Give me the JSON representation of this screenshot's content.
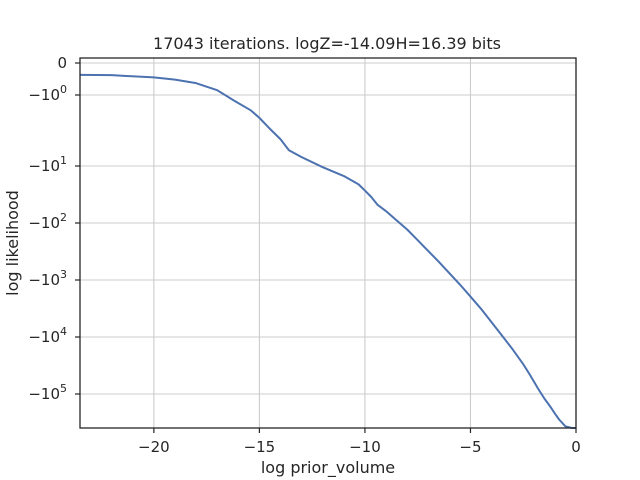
{
  "chart_data": {
    "type": "line",
    "title": "17043 iterations. logZ=-14.09H=16.39 bits",
    "xlabel": "log prior_volume",
    "ylabel": "log likelihood",
    "xlim": [
      -23.5,
      0
    ],
    "x_ticks": [
      {
        "value": -20,
        "label": "−20"
      },
      {
        "value": -15,
        "label": "−15"
      },
      {
        "value": -10,
        "label": "−10"
      },
      {
        "value": -5,
        "label": "−5"
      },
      {
        "value": 0,
        "label": "0"
      }
    ],
    "y_scale": "symlog",
    "y_ticks": [
      {
        "value": 0,
        "base": "0",
        "exp": ""
      },
      {
        "value": -1,
        "base": "−10",
        "exp": "0"
      },
      {
        "value": -10,
        "base": "−10",
        "exp": "1"
      },
      {
        "value": -100,
        "base": "−10",
        "exp": "2"
      },
      {
        "value": -1000,
        "base": "−10",
        "exp": "3"
      },
      {
        "value": -10000,
        "base": "−10",
        "exp": "4"
      },
      {
        "value": -100000,
        "base": "−10",
        "exp": "5"
      }
    ],
    "grid": true,
    "series": [
      {
        "color": "#4c72b0",
        "x": [
          -23.5,
          -22,
          -21.5,
          -20,
          -19,
          -18,
          -17,
          -16.2,
          -15.4,
          -15.0,
          -14.5,
          -14.0,
          -13.6,
          -13.0,
          -12.0,
          -11.0,
          -10.3,
          -10.0,
          -9.7,
          -9.4,
          -9.0,
          -8.5,
          -8.0,
          -7.5,
          -7.0,
          -6.5,
          -6.0,
          -5.5,
          -5.0,
          -4.5,
          -4.0,
          -3.5,
          -3.0,
          -2.5,
          -2.2,
          -2.0,
          -1.8,
          -1.5,
          -1.2,
          -1.0,
          -0.8,
          -0.5,
          -0.2,
          -0.05,
          0
        ],
        "y": [
          -0.37,
          -0.38,
          -0.4,
          -0.45,
          -0.52,
          -0.63,
          -0.85,
          -1.2,
          -1.65,
          -2.1,
          -3.0,
          -4.2,
          -6.0,
          -7.5,
          -10.5,
          -15.0,
          -21,
          -27,
          -35,
          -48,
          -62,
          -90,
          -130,
          -200,
          -310,
          -480,
          -760,
          -1200,
          -1950,
          -3200,
          -5500,
          -9500,
          -16500,
          -30000,
          -45000,
          -60000,
          -80000,
          -120000,
          -170000,
          -220000,
          -280000,
          -370000,
          -480000,
          -650000,
          -900000
        ],
        "linthresh": 1,
        "linscale": 1
      }
    ]
  }
}
